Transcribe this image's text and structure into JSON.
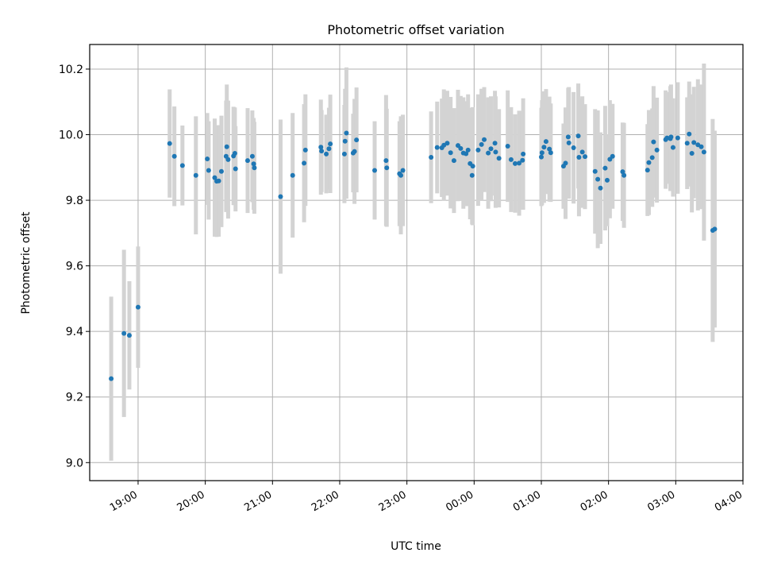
{
  "chart_data": {
    "type": "scatter",
    "title": "Photometric offset variation",
    "xlabel": "UTC time",
    "ylabel": "Photometric offset",
    "x_unit": "hours (clock time; values past 24 = after midnight)",
    "xlim": [
      18.28,
      28.0
    ],
    "ylim": [
      8.945,
      10.275
    ],
    "xticks": [
      19,
      20,
      21,
      22,
      23,
      24,
      25,
      26,
      27,
      28
    ],
    "xtick_labels": [
      "19:00",
      "20:00",
      "21:00",
      "22:00",
      "23:00",
      "00:00",
      "01:00",
      "02:00",
      "03:00",
      "04:00"
    ],
    "yticks": [
      9.0,
      9.2,
      9.4,
      9.6,
      9.8,
      10.0,
      10.2
    ],
    "ytick_labels": [
      "9.0",
      "9.2",
      "9.4",
      "9.6",
      "9.8",
      "10.0",
      "10.2"
    ],
    "grid": true,
    "colors": {
      "points": "#1f77b4",
      "error_bars": "#d3d3d3",
      "grid": "#b0b0b0",
      "axes": "#000000"
    },
    "series": [
      {
        "x": [
          18.6,
          18.79,
          18.87,
          19.0,
          19.47,
          19.54,
          19.66,
          19.86,
          20.03,
          20.05,
          20.14,
          20.17,
          20.2,
          20.24,
          20.31,
          20.32,
          20.34,
          20.42,
          20.44,
          20.45,
          20.63,
          20.7,
          20.72,
          20.73,
          21.12,
          21.3,
          21.47,
          21.49,
          21.72,
          21.73,
          21.8,
          21.84,
          21.86,
          22.07,
          22.08,
          22.1,
          22.2,
          22.22,
          22.25,
          22.52,
          22.69,
          22.7,
          22.89,
          22.91,
          22.94,
          23.36,
          23.45,
          23.52,
          23.55,
          23.6,
          23.65,
          23.7,
          23.76,
          23.8,
          23.84,
          23.88,
          23.91,
          23.94,
          23.97,
          23.98,
          24.06,
          24.11,
          24.15,
          24.21,
          24.25,
          24.31,
          24.32,
          24.37,
          24.5,
          24.55,
          24.61,
          24.67,
          24.72,
          24.73,
          25.0,
          25.01,
          25.04,
          25.07,
          25.12,
          25.14,
          25.33,
          25.36,
          25.4,
          25.41,
          25.48,
          25.55,
          25.56,
          25.61,
          25.65,
          25.8,
          25.84,
          25.88,
          25.95,
          25.98,
          26.02,
          26.06,
          26.21,
          26.23,
          26.58,
          26.6,
          26.65,
          26.67,
          26.72,
          26.85,
          26.87,
          26.92,
          26.93,
          26.96,
          27.03,
          27.17,
          27.2,
          27.24,
          27.27,
          27.33,
          27.38,
          27.42,
          27.55,
          27.58
        ],
        "y": [
          9.256,
          9.394,
          9.388,
          9.474,
          9.973,
          9.934,
          9.906,
          9.876,
          9.926,
          9.891,
          9.869,
          9.858,
          9.859,
          9.888,
          9.934,
          9.963,
          9.924,
          9.935,
          9.943,
          9.896,
          9.921,
          9.934,
          9.911,
          9.899,
          9.811,
          9.876,
          9.913,
          9.953,
          9.962,
          9.95,
          9.941,
          9.957,
          9.972,
          9.941,
          9.98,
          10.005,
          9.944,
          9.949,
          9.984,
          9.891,
          9.921,
          9.899,
          9.881,
          9.876,
          9.891,
          9.931,
          9.961,
          9.96,
          9.968,
          9.974,
          9.945,
          9.921,
          9.967,
          9.958,
          9.944,
          9.942,
          9.953,
          9.912,
          9.876,
          9.904,
          9.953,
          9.97,
          9.985,
          9.944,
          9.957,
          9.974,
          9.947,
          9.928,
          9.965,
          9.924,
          9.912,
          9.913,
          9.922,
          9.941,
          9.932,
          9.945,
          9.962,
          9.979,
          9.956,
          9.945,
          9.904,
          9.913,
          9.993,
          9.975,
          9.96,
          9.996,
          9.931,
          9.947,
          9.933,
          9.888,
          9.864,
          9.837,
          9.898,
          9.861,
          9.925,
          9.934,
          9.887,
          9.876,
          9.892,
          9.915,
          9.93,
          9.978,
          9.953,
          9.985,
          9.99,
          9.988,
          9.993,
          9.961,
          9.99,
          9.974,
          10.002,
          9.943,
          9.976,
          9.969,
          9.963,
          9.947,
          9.708,
          9.712
        ],
        "yerr": [
          0.25,
          0.255,
          0.165,
          0.185,
          0.165,
          0.152,
          0.122,
          0.18,
          0.14,
          0.15,
          0.18,
          0.17,
          0.17,
          0.17,
          0.17,
          0.19,
          0.18,
          0.15,
          0.14,
          0.13,
          0.16,
          0.14,
          0.14,
          0.14,
          0.235,
          0.19,
          0.18,
          0.17,
          0.145,
          0.125,
          0.12,
          0.125,
          0.15,
          0.15,
          0.16,
          0.2,
          0.12,
          0.16,
          0.16,
          0.15,
          0.2,
          0.18,
          0.16,
          0.18,
          0.17,
          0.14,
          0.14,
          0.15,
          0.17,
          0.16,
          0.17,
          0.16,
          0.17,
          0.16,
          0.17,
          0.16,
          0.17,
          0.17,
          0.15,
          0.18,
          0.17,
          0.17,
          0.16,
          0.17,
          0.16,
          0.16,
          0.17,
          0.15,
          0.17,
          0.16,
          0.15,
          0.16,
          0.15,
          0.17,
          0.15,
          0.16,
          0.17,
          0.16,
          0.16,
          0.15,
          0.13,
          0.17,
          0.15,
          0.17,
          0.17,
          0.16,
          0.18,
          0.17,
          0.16,
          0.19,
          0.21,
          0.17,
          0.19,
          0.14,
          0.18,
          0.16,
          0.15,
          0.16,
          0.14,
          0.16,
          0.15,
          0.17,
          0.16,
          0.15,
          0.14,
          0.16,
          0.16,
          0.15,
          0.17,
          0.14,
          0.16,
          0.18,
          0.17,
          0.2,
          0.19,
          0.27,
          0.34,
          0.3
        ]
      }
    ]
  }
}
